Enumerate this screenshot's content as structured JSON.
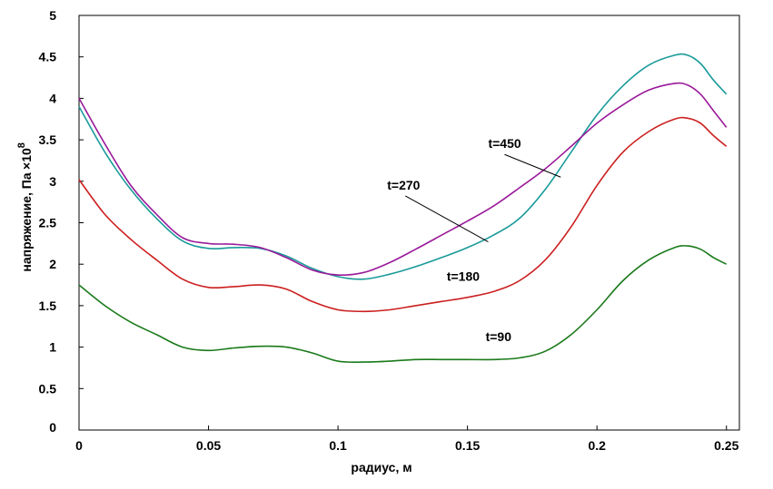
{
  "chart_data": {
    "type": "line",
    "title": "",
    "xlabel": "радиус, м",
    "ylabel": "напряжение, Па",
    "y_multiplier": "×10",
    "y_multiplier_exp": "8",
    "xlim": [
      0,
      0.255
    ],
    "ylim": [
      0,
      5
    ],
    "x_ticks": [
      "0",
      "0.05",
      "0.1",
      "0.15",
      "0.2",
      "0.25"
    ],
    "y_ticks": [
      "0",
      "0.5",
      "1",
      "1.5",
      "2",
      "2.5",
      "3",
      "3.5",
      "4",
      "4.5",
      "5"
    ],
    "grid": false,
    "series": [
      {
        "name": "t=90",
        "color": "#1a7a1a",
        "points": [
          [
            0,
            1.75
          ],
          [
            0.01,
            1.5
          ],
          [
            0.02,
            1.3
          ],
          [
            0.03,
            1.15
          ],
          [
            0.04,
            1.0
          ],
          [
            0.05,
            0.96
          ],
          [
            0.06,
            0.99
          ],
          [
            0.07,
            1.01
          ],
          [
            0.08,
            1.0
          ],
          [
            0.09,
            0.93
          ],
          [
            0.1,
            0.83
          ],
          [
            0.11,
            0.82
          ],
          [
            0.12,
            0.83
          ],
          [
            0.13,
            0.85
          ],
          [
            0.14,
            0.85
          ],
          [
            0.15,
            0.85
          ],
          [
            0.16,
            0.85
          ],
          [
            0.17,
            0.87
          ],
          [
            0.18,
            0.95
          ],
          [
            0.19,
            1.15
          ],
          [
            0.2,
            1.45
          ],
          [
            0.21,
            1.8
          ],
          [
            0.22,
            2.05
          ],
          [
            0.23,
            2.2
          ],
          [
            0.235,
            2.22
          ],
          [
            0.24,
            2.18
          ],
          [
            0.245,
            2.08
          ],
          [
            0.25,
            2.0
          ]
        ]
      },
      {
        "name": "t=180",
        "color": "#cc1f1f",
        "points": [
          [
            0,
            3.02
          ],
          [
            0.01,
            2.6
          ],
          [
            0.02,
            2.3
          ],
          [
            0.03,
            2.05
          ],
          [
            0.04,
            1.82
          ],
          [
            0.05,
            1.72
          ],
          [
            0.06,
            1.73
          ],
          [
            0.07,
            1.75
          ],
          [
            0.08,
            1.7
          ],
          [
            0.09,
            1.55
          ],
          [
            0.1,
            1.45
          ],
          [
            0.11,
            1.43
          ],
          [
            0.12,
            1.45
          ],
          [
            0.13,
            1.5
          ],
          [
            0.14,
            1.55
          ],
          [
            0.15,
            1.6
          ],
          [
            0.16,
            1.67
          ],
          [
            0.17,
            1.8
          ],
          [
            0.18,
            2.05
          ],
          [
            0.19,
            2.45
          ],
          [
            0.2,
            2.95
          ],
          [
            0.21,
            3.35
          ],
          [
            0.22,
            3.6
          ],
          [
            0.23,
            3.75
          ],
          [
            0.235,
            3.76
          ],
          [
            0.24,
            3.7
          ],
          [
            0.245,
            3.55
          ],
          [
            0.25,
            3.42
          ]
        ]
      },
      {
        "name": "t=270",
        "color": "#1a9a9a",
        "points": [
          [
            0,
            3.9
          ],
          [
            0.01,
            3.35
          ],
          [
            0.02,
            2.9
          ],
          [
            0.03,
            2.55
          ],
          [
            0.04,
            2.28
          ],
          [
            0.05,
            2.19
          ],
          [
            0.06,
            2.2
          ],
          [
            0.07,
            2.19
          ],
          [
            0.08,
            2.1
          ],
          [
            0.09,
            1.95
          ],
          [
            0.1,
            1.85
          ],
          [
            0.11,
            1.82
          ],
          [
            0.12,
            1.88
          ],
          [
            0.13,
            1.97
          ],
          [
            0.14,
            2.08
          ],
          [
            0.15,
            2.2
          ],
          [
            0.16,
            2.35
          ],
          [
            0.17,
            2.55
          ],
          [
            0.18,
            2.9
          ],
          [
            0.19,
            3.35
          ],
          [
            0.2,
            3.8
          ],
          [
            0.21,
            4.15
          ],
          [
            0.22,
            4.4
          ],
          [
            0.23,
            4.52
          ],
          [
            0.235,
            4.52
          ],
          [
            0.24,
            4.42
          ],
          [
            0.245,
            4.22
          ],
          [
            0.25,
            4.05
          ]
        ]
      },
      {
        "name": "t=450",
        "color": "#9a1a9a",
        "points": [
          [
            0,
            4.0
          ],
          [
            0.01,
            3.45
          ],
          [
            0.02,
            2.95
          ],
          [
            0.03,
            2.6
          ],
          [
            0.04,
            2.32
          ],
          [
            0.05,
            2.25
          ],
          [
            0.06,
            2.24
          ],
          [
            0.07,
            2.2
          ],
          [
            0.08,
            2.08
          ],
          [
            0.09,
            1.93
          ],
          [
            0.1,
            1.87
          ],
          [
            0.11,
            1.9
          ],
          [
            0.12,
            2.02
          ],
          [
            0.13,
            2.18
          ],
          [
            0.14,
            2.35
          ],
          [
            0.15,
            2.52
          ],
          [
            0.16,
            2.7
          ],
          [
            0.17,
            2.92
          ],
          [
            0.18,
            3.15
          ],
          [
            0.19,
            3.42
          ],
          [
            0.2,
            3.7
          ],
          [
            0.21,
            3.92
          ],
          [
            0.22,
            4.1
          ],
          [
            0.23,
            4.18
          ],
          [
            0.235,
            4.16
          ],
          [
            0.24,
            4.05
          ],
          [
            0.245,
            3.85
          ],
          [
            0.25,
            3.65
          ]
        ]
      }
    ],
    "annotations": [
      {
        "text": "t=90",
        "x": 0.157,
        "y": 1.07
      },
      {
        "text": "t=180",
        "x": 0.142,
        "y": 1.8
      },
      {
        "text": "t=270",
        "x": 0.119,
        "y": 2.9,
        "pointer_to": [
          0.158,
          2.27
        ]
      },
      {
        "text": "t=450",
        "x": 0.158,
        "y": 3.4,
        "pointer_to": [
          0.186,
          3.05
        ]
      }
    ]
  }
}
